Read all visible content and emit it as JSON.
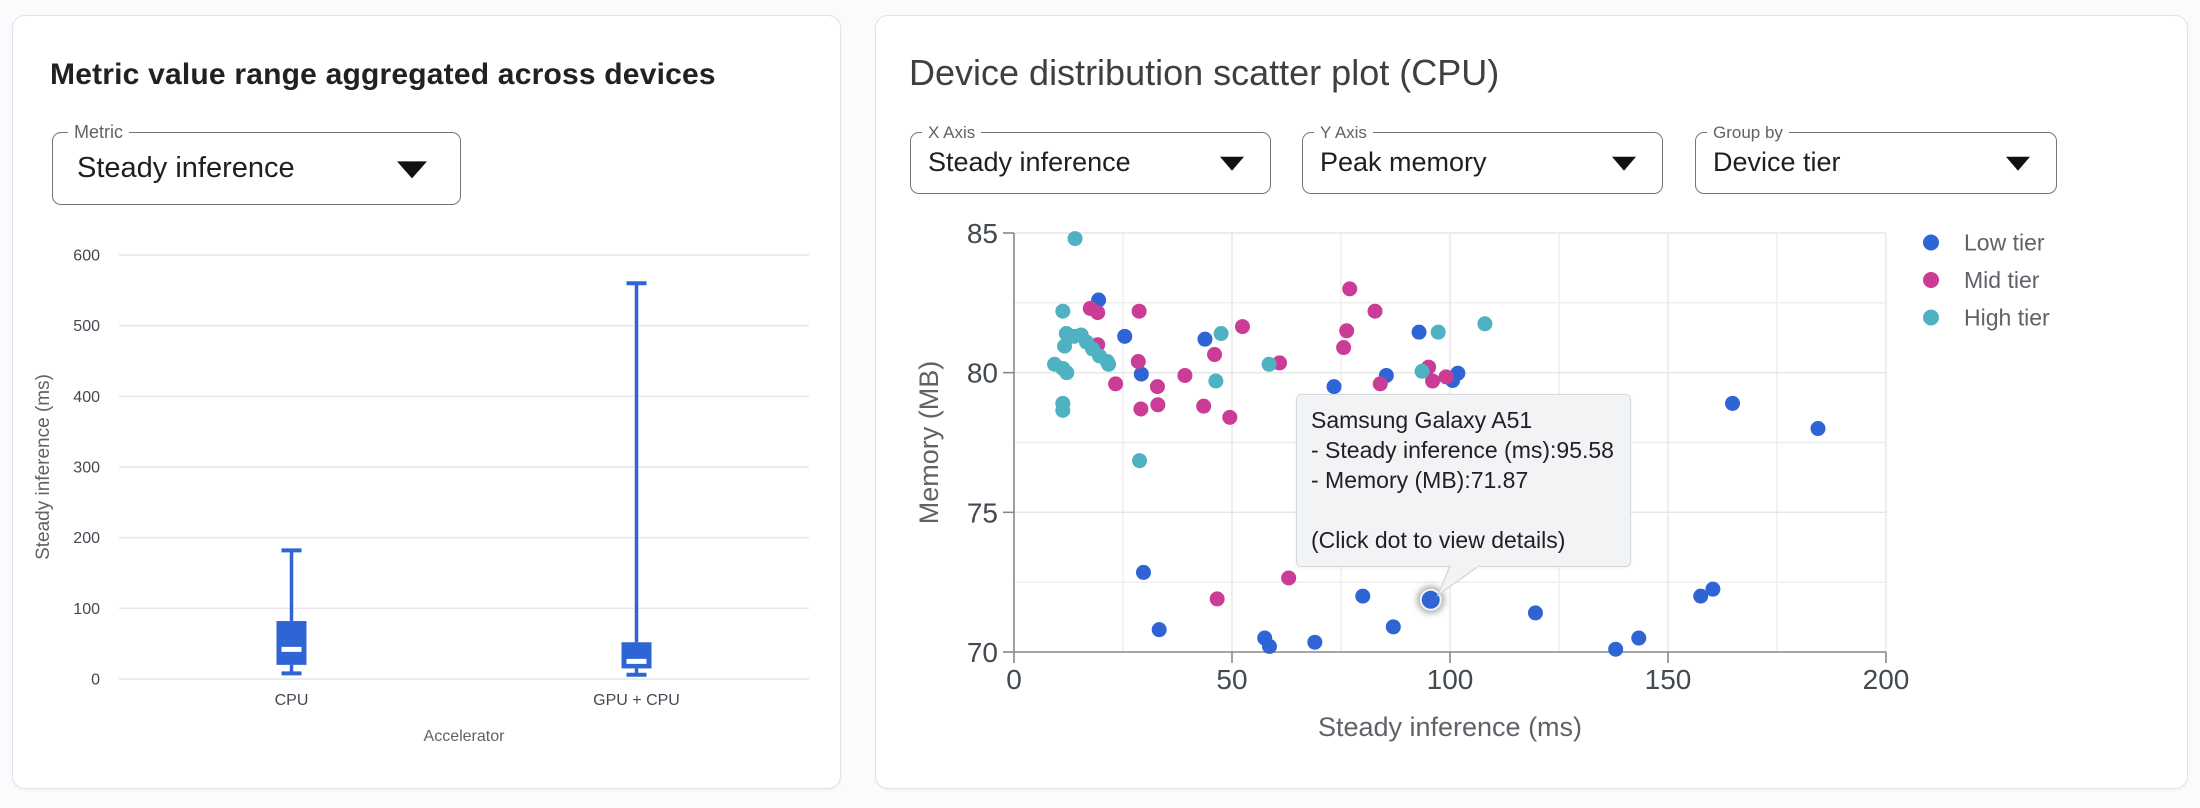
{
  "colors": {
    "series_blue": "#2E64D3",
    "series_pink": "#CA3C95",
    "series_teal": "#4EB2C2",
    "gridline": "#e6e6e6",
    "minor_gridline": "#ededed",
    "axis_line": "#888888",
    "tick_label": "#424950",
    "axis_title": "#5f6368",
    "tooltip_bg": "#f1f3f4",
    "tooltip_border": "#d6d9dc",
    "median_line": "#ffffff"
  },
  "left_card": {
    "title": "Metric value range aggregated across devices",
    "metric_select": {
      "label": "Metric",
      "value": "Steady inference"
    }
  },
  "right_card": {
    "title": "Device distribution scatter plot (CPU)",
    "x_axis_select": {
      "label": "X Axis",
      "value": "Steady inference"
    },
    "y_axis_select": {
      "label": "Y Axis",
      "value": "Peak memory"
    },
    "group_by_select": {
      "label": "Group by",
      "value": "Device tier"
    },
    "legend": [
      {
        "label": "Low tier",
        "color": "#2E64D3"
      },
      {
        "label": "Mid tier",
        "color": "#CA3C95"
      },
      {
        "label": "High tier",
        "color": "#4EB2C2"
      }
    ],
    "tooltip": {
      "title": "Samsung Galaxy A51",
      "line_x": "- Steady inference (ms):95.58",
      "line_y": "- Memory (MB):71.87",
      "note": "(Click dot to view details)"
    }
  },
  "chart_data": [
    {
      "type": "boxplot",
      "title": "Metric value range aggregated across devices",
      "xlabel": "Accelerator",
      "ylabel": "Steady inference (ms)",
      "ylim": [
        0,
        600
      ],
      "yticks": [
        0,
        100,
        200,
        300,
        400,
        500,
        600
      ],
      "grid": true,
      "categories": [
        "CPU",
        "GPU + CPU"
      ],
      "series": [
        {
          "name": "CPU",
          "min": 8,
          "q1": 20,
          "median": 42,
          "q3": 82,
          "max": 182
        },
        {
          "name": "GPU + CPU",
          "min": 6,
          "q1": 15,
          "median": 25,
          "q3": 52,
          "max": 560
        }
      ]
    },
    {
      "type": "scatter",
      "title": "Device distribution scatter plot (CPU)",
      "xlabel": "Steady inference (ms)",
      "ylabel": "Memory (MB)",
      "xlim": [
        0,
        200
      ],
      "ylim": [
        70,
        85
      ],
      "xticks": [
        0,
        50,
        100,
        150,
        200
      ],
      "yticks": [
        70,
        75,
        80,
        85
      ],
      "x_minor_step": 25,
      "y_minor_step": 2.5,
      "grid": true,
      "legend_position": "right",
      "series": [
        {
          "name": "Low tier",
          "color": "#2E64D3",
          "points": [
            [
              19.4,
              82.6
            ],
            [
              25.4,
              81.3
            ],
            [
              43.8,
              81.2
            ],
            [
              29.2,
              79.95
            ],
            [
              73.4,
              79.5
            ],
            [
              85.4,
              79.9
            ],
            [
              92.9,
              81.45
            ],
            [
              100.6,
              79.72
            ],
            [
              101.8,
              79.98
            ],
            [
              164.8,
              78.9
            ],
            [
              184.4,
              78.0
            ],
            [
              29.7,
              72.85
            ],
            [
              33.3,
              70.8
            ],
            [
              57.5,
              70.5
            ],
            [
              58.6,
              70.2
            ],
            [
              69.0,
              70.35
            ],
            [
              80.0,
              72.0
            ],
            [
              87.0,
              70.9
            ],
            [
              95.58,
              71.87
            ],
            [
              119.6,
              71.4
            ],
            [
              138.0,
              70.1
            ],
            [
              143.3,
              70.5
            ],
            [
              157.5,
              72.0
            ],
            [
              160.3,
              72.25
            ]
          ]
        },
        {
          "name": "Mid tier",
          "color": "#CA3C95",
          "points": [
            [
              17.5,
              82.3
            ],
            [
              19.2,
              82.15
            ],
            [
              28.7,
              82.2
            ],
            [
              52.4,
              81.65
            ],
            [
              19.2,
              81.0
            ],
            [
              28.5,
              80.4
            ],
            [
              23.3,
              79.6
            ],
            [
              32.9,
              79.5
            ],
            [
              39.2,
              79.9
            ],
            [
              46.0,
              80.65
            ],
            [
              60.9,
              80.35
            ],
            [
              29.1,
              78.7
            ],
            [
              33.0,
              78.85
            ],
            [
              43.5,
              78.8
            ],
            [
              49.5,
              78.4
            ],
            [
              77.0,
              83.0
            ],
            [
              82.8,
              82.2
            ],
            [
              76.3,
              81.5
            ],
            [
              75.6,
              80.9
            ],
            [
              84.0,
              79.6
            ],
            [
              95.1,
              80.2
            ],
            [
              96.0,
              79.7
            ],
            [
              99.1,
              79.85
            ],
            [
              46.6,
              71.9
            ],
            [
              63.0,
              72.65
            ]
          ]
        },
        {
          "name": "High tier",
          "color": "#4EB2C2",
          "points": [
            [
              14.0,
              84.8
            ],
            [
              11.2,
              82.2
            ],
            [
              12.0,
              81.4
            ],
            [
              13.8,
              81.3
            ],
            [
              15.4,
              81.35
            ],
            [
              16.6,
              81.1
            ],
            [
              11.6,
              80.95
            ],
            [
              18.0,
              80.85
            ],
            [
              19.6,
              80.6
            ],
            [
              21.4,
              80.4
            ],
            [
              21.7,
              80.3
            ],
            [
              9.3,
              80.3
            ],
            [
              11.2,
              80.15
            ],
            [
              12.1,
              80.0
            ],
            [
              11.2,
              78.9
            ],
            [
              11.2,
              78.65
            ],
            [
              28.8,
              76.85
            ],
            [
              47.5,
              81.4
            ],
            [
              46.3,
              79.7
            ],
            [
              58.5,
              80.3
            ],
            [
              93.6,
              80.05
            ],
            [
              97.3,
              81.45
            ],
            [
              108.0,
              81.75
            ]
          ]
        }
      ],
      "selected_point": {
        "series": "Low tier",
        "x": 95.58,
        "y": 71.87,
        "device": "Samsung Galaxy A51"
      }
    }
  ]
}
